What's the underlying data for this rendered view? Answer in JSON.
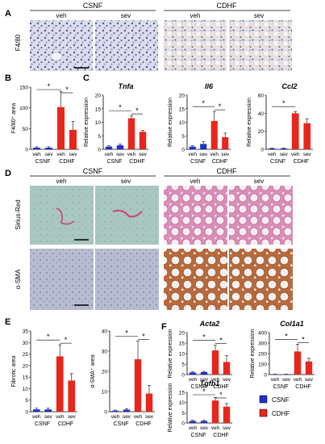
{
  "panels": {
    "A": {
      "label": "A",
      "group_labels": [
        "CSNF",
        "CDHF"
      ],
      "column_labels": [
        "veh",
        "sev",
        "veh",
        "sev"
      ],
      "row_label": "F4/80"
    },
    "D": {
      "label": "D",
      "group_labels": [
        "CSNF",
        "CDHF"
      ],
      "column_labels": [
        "veh",
        "sev",
        "veh",
        "sev"
      ],
      "row_labels": [
        "Sirius-Red",
        "α-SMA"
      ]
    },
    "C": {
      "label": "C"
    },
    "F": {
      "label": "F"
    }
  },
  "legend": {
    "items": [
      {
        "label": "CSNF",
        "color": "#1f2ecc"
      },
      {
        "label": "CDHF",
        "color": "#e8261c"
      }
    ]
  },
  "chart_data": [
    {
      "id": "B",
      "panel": "B",
      "type": "bar",
      "categories": [
        "veh",
        "sev",
        "veh",
        "sev"
      ],
      "groups": [
        "CSNF",
        "CDHF"
      ],
      "values": [
        4,
        4,
        102,
        47
      ],
      "errors": [
        2,
        2,
        38,
        20
      ],
      "ylabel": "F4/80⁺ area",
      "ylim": [
        0,
        150
      ],
      "yticks": [
        0,
        50,
        100,
        150
      ],
      "title": "",
      "significance": [
        "*",
        "*"
      ]
    },
    {
      "id": "Tnfa",
      "panel": "C",
      "type": "bar",
      "categories": [
        "veh",
        "sev",
        "veh",
        "sev"
      ],
      "groups": [
        "CSNF",
        "CDHF"
      ],
      "values": [
        1,
        1.5,
        11.5,
        6.5
      ],
      "errors": [
        0.3,
        0.5,
        1,
        0.5
      ],
      "ylabel": "Relative expression",
      "ylim": [
        0,
        20
      ],
      "yticks": [
        0,
        5,
        10,
        15,
        20
      ],
      "title": "Tnfa",
      "significance": [
        "*",
        "*"
      ]
    },
    {
      "id": "Il6",
      "panel": "C",
      "type": "bar",
      "categories": [
        "veh",
        "sev",
        "veh",
        "sev"
      ],
      "groups": [
        "CSNF",
        "CDHF"
      ],
      "values": [
        1,
        2,
        10.5,
        4.5
      ],
      "errors": [
        0.3,
        0.8,
        3.5,
        1.5
      ],
      "ylabel": "Relative expression",
      "ylim": [
        0,
        20
      ],
      "yticks": [
        0,
        5,
        10,
        15,
        20
      ],
      "title": "Il6",
      "significance": [
        "*",
        "*"
      ]
    },
    {
      "id": "Ccl2",
      "panel": "C",
      "type": "bar",
      "categories": [
        "veh",
        "sev",
        "veh",
        "sev"
      ],
      "groups": [
        "CSNF",
        "CDHF"
      ],
      "values": [
        1,
        1,
        40,
        29
      ],
      "errors": [
        0.5,
        0.5,
        2,
        5
      ],
      "ylabel": "Relative expression",
      "ylim": [
        0,
        60
      ],
      "yticks": [
        0,
        20,
        40,
        60
      ],
      "title": "Ccl2",
      "significance": [
        "*"
      ]
    },
    {
      "id": "E1",
      "panel": "E",
      "type": "bar",
      "categories": [
        "veh",
        "sev",
        "veh",
        "sev"
      ],
      "groups": [
        "CSNF",
        "CDHF"
      ],
      "values": [
        1,
        1,
        24,
        13.5
      ],
      "errors": [
        0.5,
        0.5,
        5,
        3
      ],
      "ylabel": "Fibrotic area",
      "ylim": [
        0,
        35
      ],
      "yticks": [
        0,
        5,
        10,
        15,
        20,
        25,
        30,
        35
      ],
      "title": "",
      "significance": [
        "*",
        "*"
      ]
    },
    {
      "id": "E2",
      "panel": "E",
      "type": "bar",
      "categories": [
        "veh",
        "sev",
        "veh",
        "sev"
      ],
      "groups": [
        "CSNF",
        "CDHF"
      ],
      "values": [
        0.5,
        1,
        26,
        9
      ],
      "errors": [
        0.3,
        0.5,
        9,
        4
      ],
      "ylabel": "α-SMA⁺ area",
      "ylim": [
        0,
        40
      ],
      "yticks": [
        0,
        10,
        20,
        30,
        40
      ],
      "title": "",
      "significance": [
        "*",
        "*"
      ]
    },
    {
      "id": "Acta2",
      "panel": "F",
      "type": "bar",
      "categories": [
        "veh",
        "sev",
        "veh",
        "sev"
      ],
      "groups": [
        "CSNF",
        "CDHF"
      ],
      "values": [
        1,
        1.2,
        11.5,
        6
      ],
      "errors": [
        0.3,
        0.3,
        2.5,
        3
      ],
      "ylabel": "Relative expression",
      "ylim": [
        0,
        20
      ],
      "yticks": [
        0,
        5,
        10,
        15,
        20
      ],
      "title": "Acta2",
      "significance": [
        "*",
        "*"
      ]
    },
    {
      "id": "Col1a1",
      "panel": "F",
      "type": "bar",
      "categories": [
        "veh",
        "sev",
        "veh",
        "sev"
      ],
      "groups": [
        "CSNF",
        "CDHF"
      ],
      "values": [
        2,
        2,
        220,
        125
      ],
      "errors": [
        2,
        2,
        70,
        30
      ],
      "ylabel": "Relative expression",
      "ylim": [
        0,
        400
      ],
      "yticks": [
        0,
        100,
        200,
        300,
        400
      ],
      "title": "Col1a1",
      "significance": [
        "*",
        "*"
      ]
    },
    {
      "id": "Tgfb1",
      "panel": "F",
      "type": "bar",
      "categories": [
        "veh",
        "sev",
        "veh",
        "sev"
      ],
      "groups": [
        "CSNF",
        "CDHF"
      ],
      "values": [
        1,
        1,
        11,
        8
      ],
      "errors": [
        0.3,
        0.3,
        1.5,
        1.5
      ],
      "ylabel": "Relative expression",
      "ylim": [
        0,
        15
      ],
      "yticks": [
        0,
        5,
        10,
        15
      ],
      "title": "Tgfb1",
      "significance": [
        "*",
        "*"
      ]
    }
  ]
}
